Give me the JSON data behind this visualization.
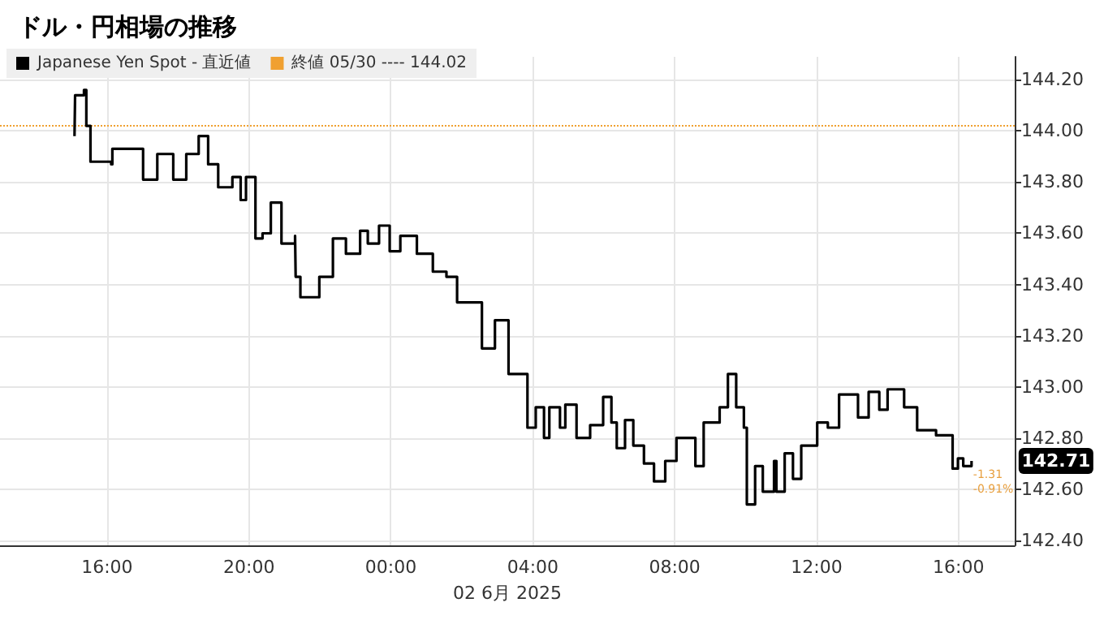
{
  "chart_data": {
    "type": "step",
    "title": "ドル・円相場の推移",
    "xlabel": "02 6月 2025",
    "x": [
      "2025-06-01T15:05",
      "2025-06-01T15:06",
      "2025-06-01T15:21",
      "2025-06-01T15:25",
      "2025-06-01T15:32",
      "2025-06-01T16:07",
      "2025-06-01T16:09",
      "2025-06-01T16:47",
      "2025-06-01T17:01",
      "2025-06-01T17:25",
      "2025-06-01T17:52",
      "2025-06-01T18:14",
      "2025-06-01T18:35",
      "2025-06-01T18:51",
      "2025-06-01T19:08",
      "2025-06-01T19:32",
      "2025-06-01T19:46",
      "2025-06-01T19:55",
      "2025-06-01T20:11",
      "2025-06-01T20:23",
      "2025-06-01T20:37",
      "2025-06-01T20:55",
      "2025-06-01T21:18",
      "2025-06-01T21:19",
      "2025-06-01T21:27",
      "2025-06-01T21:45",
      "2025-06-01T21:59",
      "2025-06-01T22:22",
      "2025-06-01T22:44",
      "2025-06-01T23:08",
      "2025-06-01T23:21",
      "2025-06-01T23:40",
      "2025-06-01T23:58",
      "2025-06-02T00:16",
      "2025-06-02T00:44",
      "2025-06-02T01:11",
      "2025-06-02T01:34",
      "2025-06-02T01:52",
      "2025-06-02T02:10",
      "2025-06-02T02:34",
      "2025-06-02T02:56",
      "2025-06-02T03:19",
      "2025-06-02T03:37",
      "2025-06-02T03:51",
      "2025-06-02T04:05",
      "2025-06-02T04:19",
      "2025-06-02T04:28",
      "2025-06-02T04:46",
      "2025-06-02T04:55",
      "2025-06-02T05:14",
      "2025-06-02T05:37",
      "2025-06-02T05:59",
      "2025-06-02T06:13",
      "2025-06-02T06:22",
      "2025-06-02T06:36",
      "2025-06-02T06:50",
      "2025-06-02T07:08",
      "2025-06-02T07:25",
      "2025-06-02T07:44",
      "2025-06-02T08:03",
      "2025-06-02T08:26",
      "2025-06-02T08:35",
      "2025-06-02T08:49",
      "2025-06-02T09:16",
      "2025-06-02T09:30",
      "2025-06-02T09:44",
      "2025-06-02T09:57",
      "2025-06-02T10:02",
      "2025-06-02T10:16",
      "2025-06-02T10:29",
      "2025-06-02T10:48",
      "2025-06-02T10:52",
      "2025-06-02T11:06",
      "2025-06-02T11:20",
      "2025-06-02T11:34",
      "2025-06-02T12:01",
      "2025-06-02T12:19",
      "2025-06-02T12:38",
      "2025-06-02T13:10",
      "2025-06-02T13:28",
      "2025-06-02T13:46",
      "2025-06-02T14:00",
      "2025-06-02T14:28",
      "2025-06-02T14:50",
      "2025-06-02T15:22",
      "2025-06-02T15:50",
      "2025-06-02T15:59",
      "2025-06-02T16:08",
      "2025-06-02T16:22"
    ],
    "series": [
      {
        "name": "Japanese Yen Spot - 直近値",
        "color": "#000000",
        "values": [
          143.98,
          144.14,
          144.16,
          144.02,
          143.88,
          143.87,
          143.93,
          143.93,
          143.81,
          143.91,
          143.81,
          143.91,
          143.98,
          143.87,
          143.78,
          143.82,
          143.73,
          143.82,
          143.58,
          143.6,
          143.72,
          143.56,
          143.59,
          143.43,
          143.35,
          143.35,
          143.43,
          143.58,
          143.52,
          143.61,
          143.56,
          143.63,
          143.53,
          143.59,
          143.52,
          143.45,
          143.43,
          143.33,
          143.33,
          143.15,
          143.26,
          143.05,
          143.05,
          142.84,
          142.92,
          142.8,
          142.92,
          142.84,
          142.93,
          142.8,
          142.85,
          142.96,
          142.86,
          142.76,
          142.87,
          142.77,
          142.7,
          142.63,
          142.71,
          142.8,
          142.8,
          142.69,
          142.86,
          142.92,
          143.05,
          142.92,
          142.84,
          142.54,
          142.69,
          142.59,
          142.71,
          142.59,
          142.74,
          142.64,
          142.77,
          142.86,
          142.84,
          142.97,
          142.88,
          142.98,
          142.91,
          142.99,
          142.92,
          142.83,
          142.81,
          142.68,
          142.72,
          142.69,
          142.71
        ]
      }
    ],
    "xlim": [
      "2025-06-01T12:59",
      "2025-06-02T17:35"
    ],
    "ylim": [
      142.38,
      144.29
    ],
    "xticks": [
      {
        "value": "2025-06-01T16:00",
        "label": "16:00"
      },
      {
        "value": "2025-06-01T20:00",
        "label": "20:00"
      },
      {
        "value": "2025-06-02T00:00",
        "label": "00:00"
      },
      {
        "value": "2025-06-02T04:00",
        "label": "04:00"
      },
      {
        "value": "2025-06-02T08:00",
        "label": "08:00"
      },
      {
        "value": "2025-06-02T12:00",
        "label": "12:00"
      },
      {
        "value": "2025-06-02T16:00",
        "label": "16:00"
      }
    ],
    "yticks": [
      {
        "value": 142.4,
        "label": "142.40"
      },
      {
        "value": 142.6,
        "label": "142.60"
      },
      {
        "value": 142.8,
        "label": "142.80"
      },
      {
        "value": 143.0,
        "label": "143.00"
      },
      {
        "value": 143.2,
        "label": "143.20"
      },
      {
        "value": 143.4,
        "label": "143.40"
      },
      {
        "value": 143.6,
        "label": "143.60"
      },
      {
        "value": 143.8,
        "label": "143.80"
      },
      {
        "value": 144.0,
        "label": "144.00"
      },
      {
        "value": 144.2,
        "label": "144.20"
      }
    ],
    "ref_lines": [
      {
        "axis": "y",
        "value": 144.02,
        "label": "終値 05/30 ---- 144.02",
        "color": "#f0a030",
        "line_style": "dotted"
      }
    ],
    "annotations": [
      {
        "text": "142.71",
        "x": "2025-06-02T16:22",
        "y": 142.71
      },
      {
        "text": "-1.31",
        "x": "2025-06-02T16:22",
        "y": 142.71
      },
      {
        "text": "-0.91%",
        "x": "2025-06-02T16:22",
        "y": 142.71
      }
    ],
    "grid": true,
    "legend": "top left"
  }
}
